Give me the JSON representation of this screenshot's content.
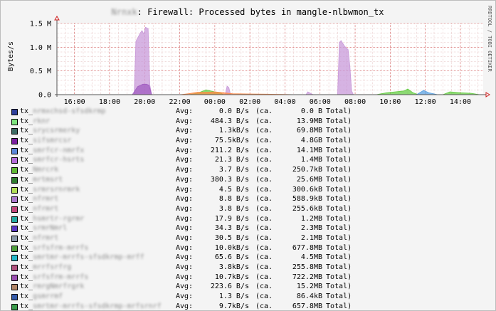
{
  "chart_data": {
    "type": "area",
    "title_prefix": "Nrnxk",
    "title": ": Firewall: Processed bytes in mangle-nlbwmon_tx",
    "ylabel": "Bytes/s",
    "side_label": "RRDTOOL / TOBI OETIKER",
    "y_ticks": [
      "0.0",
      "0.5 M",
      "1.0 M",
      "1.5 M"
    ],
    "ylim": [
      0,
      1500000
    ],
    "xlim": [
      15.0,
      39.3
    ],
    "x_ticks": [
      "16:00",
      "18:00",
      "20:00",
      "22:00",
      "00:00",
      "02:00",
      "04:00",
      "06:00",
      "08:00",
      "10:00",
      "12:00",
      "14:00"
    ],
    "grid": true,
    "series": [
      {
        "color": "#c899d9",
        "x": [
          19.4,
          19.5,
          19.75,
          19.85,
          19.95,
          20.05,
          20.2,
          20.3,
          20.4
        ],
        "values": [
          0,
          1120000,
          1300000,
          1350000,
          1280000,
          1420000,
          1390000,
          200000,
          0
        ]
      },
      {
        "color": "#a05cc0",
        "x": [
          19.3,
          19.6,
          19.9,
          20.1,
          20.25,
          20.4
        ],
        "values": [
          0,
          170000,
          220000,
          220000,
          200000,
          0
        ]
      },
      {
        "color": "#c899d9",
        "x": [
          31.0,
          31.1,
          31.2,
          31.4,
          31.6,
          31.7,
          31.8,
          31.9
        ],
        "values": [
          0,
          1100000,
          1140000,
          1020000,
          950000,
          600000,
          80000,
          0
        ]
      },
      {
        "color": "#c899d9",
        "x": [
          29.2,
          29.3,
          29.45,
          29.6
        ],
        "values": [
          0,
          60000,
          30000,
          0
        ]
      },
      {
        "color": "#c899d9",
        "x": [
          24.6,
          24.7,
          24.8,
          24.9
        ],
        "values": [
          0,
          180000,
          150000,
          0
        ]
      },
      {
        "color": "#66cc44",
        "x": [
          22.5,
          23.0,
          23.5,
          24.0,
          24.3,
          24.5
        ],
        "values": [
          0,
          30000,
          100000,
          60000,
          40000,
          0
        ]
      },
      {
        "color": "#66cc44",
        "x": [
          33.2,
          33.8,
          34.3,
          34.8,
          35.0,
          35.3,
          35.6
        ],
        "values": [
          0,
          40000,
          60000,
          80000,
          120000,
          40000,
          0
        ]
      },
      {
        "color": "#66cc44",
        "x": [
          37.0,
          37.4,
          38.0,
          38.6,
          39.1
        ],
        "values": [
          0,
          60000,
          40000,
          30000,
          0
        ]
      },
      {
        "color": "#ff8844",
        "x": [
          22.0,
          22.5,
          23.0,
          23.5,
          24.0,
          24.5,
          25.0,
          26.0,
          27.0,
          28.0,
          28.6
        ],
        "values": [
          0,
          20000,
          50000,
          50000,
          60000,
          40000,
          20000,
          15000,
          10000,
          5000,
          0
        ]
      },
      {
        "color": "#5aa0e0",
        "x": [
          35.5,
          35.9,
          36.2,
          36.7
        ],
        "values": [
          0,
          90000,
          40000,
          0
        ]
      }
    ]
  },
  "legend": [
    {
      "prefix": "tx_",
      "name": "nrmxchsd-sfsdkrmp",
      "avg": "0.0 B/s",
      "total": "0.0 B",
      "color": "#2e3f9b"
    },
    {
      "prefix": "tx_",
      "name": "rknr",
      "avg": "484.3 B/s",
      "total": "13.9MB",
      "color": "#7de37d"
    },
    {
      "prefix": "tx_",
      "name": "srycsrmerky",
      "avg": "1.3kB/s",
      "total": "69.8MB",
      "color": "#3c6b64"
    },
    {
      "prefix": "tx_",
      "name": "sifsmrcsr",
      "avg": "75.5kB/s",
      "total": "4.8GB",
      "color": "#7a1fa0"
    },
    {
      "prefix": "tx_",
      "name": "smrfcr-nmrfx",
      "avg": "211.2 B/s",
      "total": "14.1MB",
      "color": "#5b86d8"
    },
    {
      "prefix": "tx_",
      "name": "smrfcr-hsrts",
      "avg": "21.3 B/s",
      "total": "1.4MB",
      "color": "#b36ad8"
    },
    {
      "prefix": "tx_",
      "name": "Nmrcrk",
      "avg": "3.7 B/s",
      "total": "250.7kB",
      "color": "#5fb833"
    },
    {
      "prefix": "tx_",
      "name": "mrtmsrt",
      "avg": "380.3 B/s",
      "total": "25.6MB",
      "color": "#2f7d2f"
    },
    {
      "prefix": "tx_",
      "name": "srmrsrnrmrk",
      "avg": "4.5 B/s",
      "total": "300.6kB",
      "color": "#b0dd55"
    },
    {
      "prefix": "tx_",
      "name": "nfrmrt",
      "avg": "8.8 B/s",
      "total": "588.9kB",
      "color": "#aa77cc"
    },
    {
      "prefix": "tx_",
      "name": "nfrmrt",
      "avg": "3.8 B/s",
      "total": "255.6kB",
      "color": "#c0467a"
    },
    {
      "prefix": "tx_",
      "name": "hsmrtr-rgrmr",
      "avg": "17.9 B/s",
      "total": "1.2MB",
      "color": "#22a9a0"
    },
    {
      "prefix": "tx_",
      "name": "srmrNmrl",
      "avg": "34.3 B/s",
      "total": "2.3MB",
      "color": "#5a36c2"
    },
    {
      "prefix": "tx_",
      "name": "nfrmrt",
      "avg": "30.5 B/s",
      "total": "2.1MB",
      "color": "#8a97a8"
    },
    {
      "prefix": "tx_",
      "name": "srfsfrm-mrrfs",
      "avg": "10.0kB/s",
      "total": "677.8MB",
      "color": "#4e9e3c"
    },
    {
      "prefix": "tx_",
      "name": "smrtmr-mrrfs-sfsdkrmp-mrff",
      "avg": "65.6 B/s",
      "total": "4.5MB",
      "color": "#26b9c9"
    },
    {
      "prefix": "tx_",
      "name": "mrrfsrfrg",
      "avg": "3.8kB/s",
      "total": "255.8MB",
      "color": "#b0527e"
    },
    {
      "prefix": "tx_",
      "name": "srfsfrm-mrrfs",
      "avg": "10.7kB/s",
      "total": "722.2MB",
      "color": "#9b4fb0"
    },
    {
      "prefix": "tx_",
      "name": "rmrgNmrfrgrk",
      "avg": "223.6 B/s",
      "total": "15.2MB",
      "color": "#b08466"
    },
    {
      "prefix": "tx_",
      "name": "gsmrrmf",
      "avg": "1.3 B/s",
      "total": "86.4kB",
      "color": "#345aa8"
    },
    {
      "prefix": "tx_",
      "name": "smrtmr-mrrfs-sfsdkrmp-mrfsrnrf",
      "avg": "9.7kB/s",
      "total": "657.8MB",
      "color": "#3a9a4a"
    }
  ],
  "labels": {
    "avg": "Avg:",
    "ca": "(ca.",
    "total": "Total)"
  }
}
